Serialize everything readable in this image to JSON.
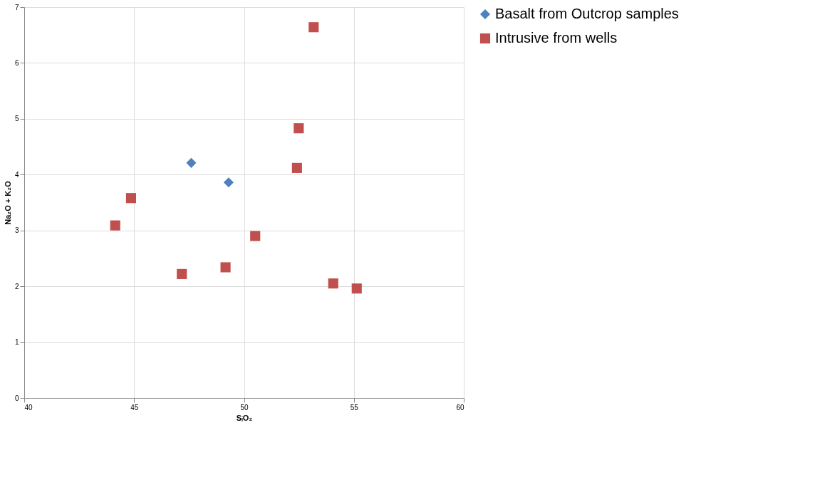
{
  "chart_data": {
    "type": "scatter",
    "xlabel": "SᵢO₂",
    "ylabel": "Na₂O + K₂O",
    "xlim": [
      40,
      60
    ],
    "xticks": [
      40,
      45,
      50,
      55,
      60
    ],
    "ylim": [
      0,
      7
    ],
    "yticks": [
      0,
      1,
      2,
      3,
      4,
      5,
      6,
      7
    ],
    "grid": true,
    "legend": "right",
    "series": [
      {
        "name": "Basalt from Outcrop samples",
        "color": "#4f81bd",
        "marker": "diamond",
        "x": [
          47.6,
          49.3
        ],
        "values": [
          4.21,
          3.86
        ]
      },
      {
        "name": "Intrusive from wells",
        "color": "#c0504d",
        "marker": "square",
        "x": [
          53.17,
          52.49,
          52.41,
          44.86,
          44.14,
          50.51,
          47.17,
          49.16,
          54.06,
          55.13
        ],
        "values": [
          6.64,
          4.83,
          4.12,
          3.58,
          3.09,
          2.9,
          2.22,
          2.34,
          2.05,
          1.96
        ]
      }
    ]
  }
}
